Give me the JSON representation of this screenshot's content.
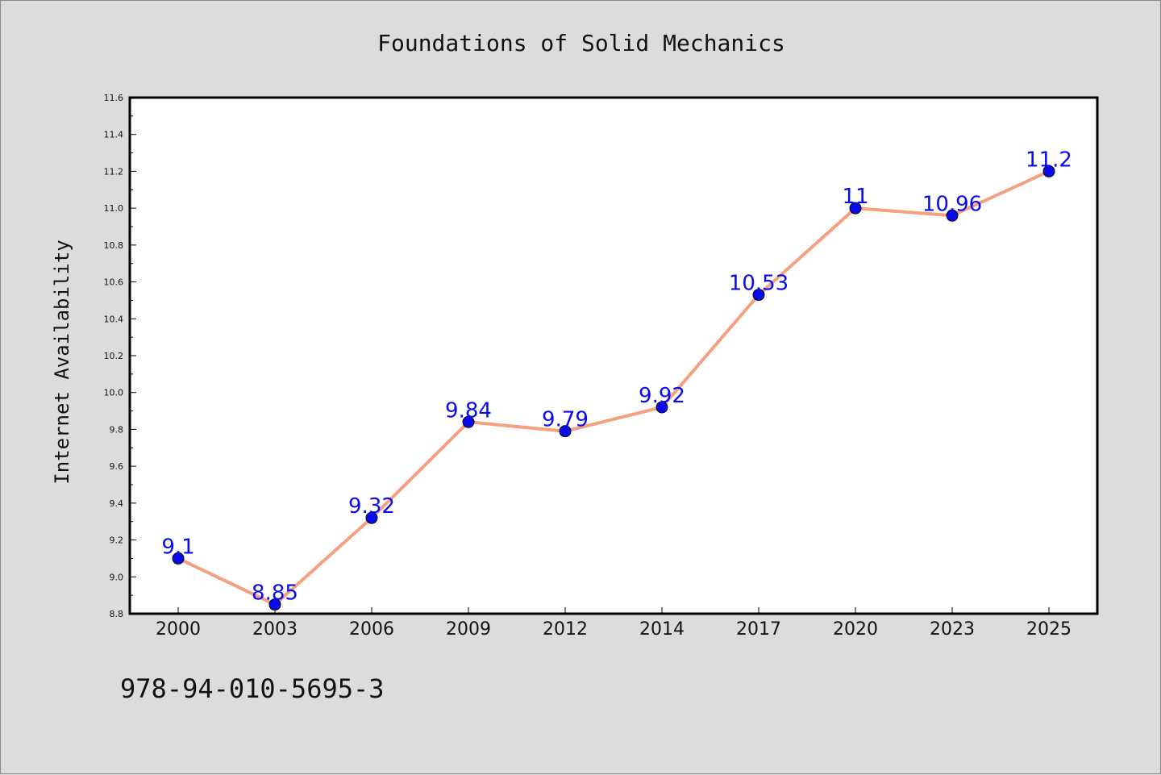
{
  "isbn": "978-94-010-5695-3",
  "colors": {
    "background": "#dcdcdc",
    "plot_background": "#ffffff",
    "line": "#f5a080",
    "marker": "#0a0aee",
    "data_label": "#0a0aee"
  },
  "chart_data": {
    "type": "line",
    "title": "Foundations of Solid Mechanics",
    "xlabel": "",
    "ylabel": "Internet Availability",
    "categories": [
      "2000",
      "2003",
      "2006",
      "2009",
      "2012",
      "2014",
      "2017",
      "2020",
      "2023",
      "2025"
    ],
    "series": [
      {
        "values": [
          9.1,
          8.85,
          9.32,
          9.84,
          9.79,
          9.92,
          10.53,
          11,
          10.96,
          11.2
        ],
        "labels": [
          "9.1",
          "8.85",
          "9.32",
          "9.84",
          "9.79",
          "9.92",
          "10.53",
          "11",
          "10.96",
          "11.2"
        ]
      }
    ],
    "ylim": [
      8.8,
      11.6
    ],
    "yticks": [
      "8.8",
      "9.0",
      "9.2",
      "9.4",
      "9.6",
      "9.8",
      "10.0",
      "10.2",
      "10.4",
      "10.6",
      "10.8",
      "11.0",
      "11.2",
      "11.4",
      "11.6"
    ],
    "grid": false,
    "legend": "none"
  }
}
